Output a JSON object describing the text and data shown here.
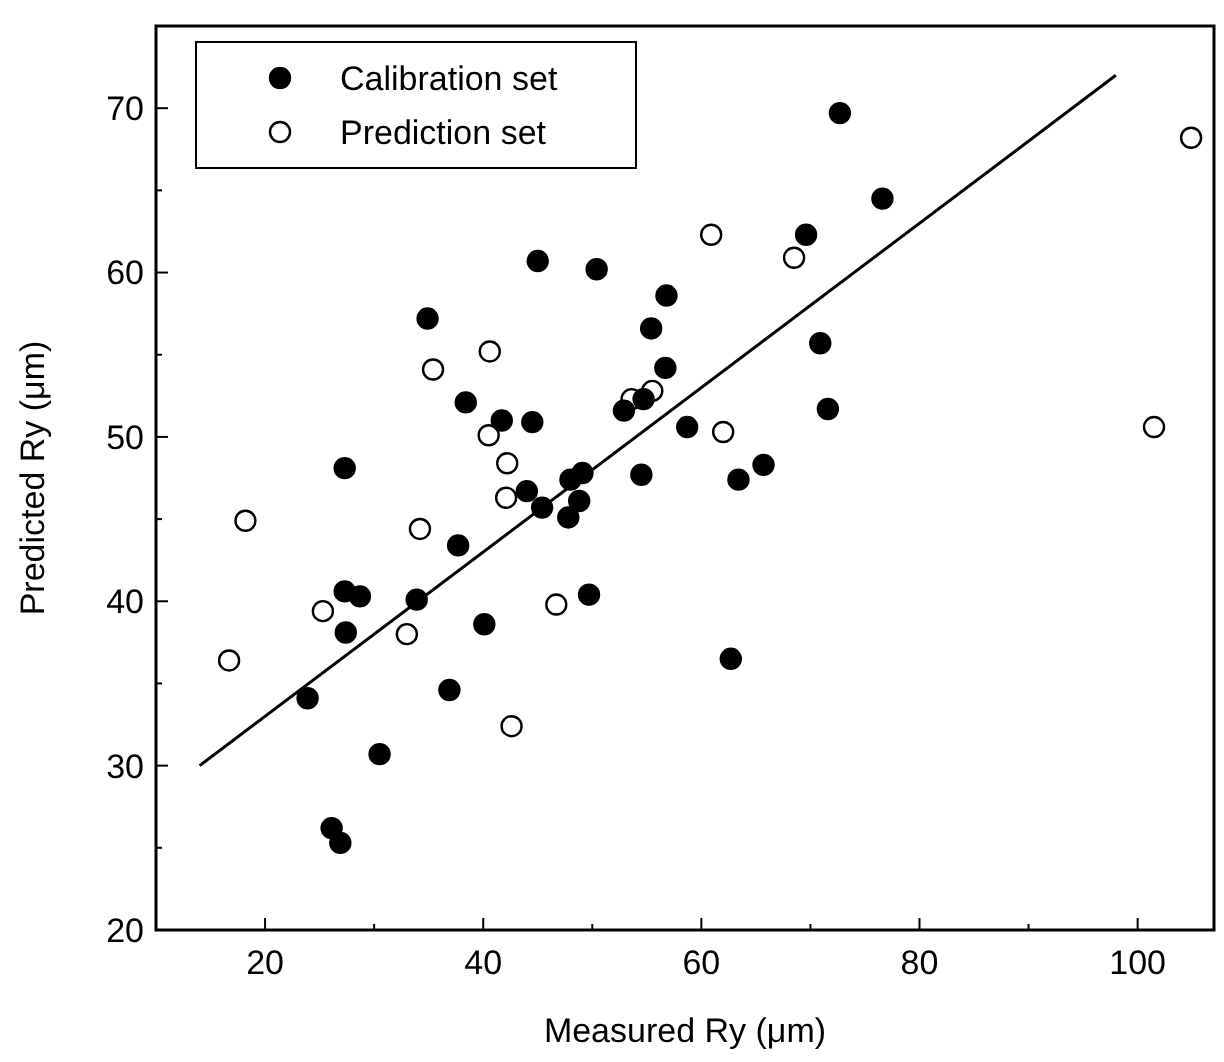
{
  "chart_data": {
    "type": "scatter",
    "xlabel": "Measured Ry (μm)",
    "ylabel": "Predicted Ry (μm)",
    "xlim": [
      10,
      107
    ],
    "ylim": [
      20,
      75
    ],
    "xticks": [
      20,
      {
        "value": 30,
        "label": null
      },
      40,
      {
        "value": 50,
        "label": null
      },
      60,
      {
        "value": 70,
        "label": null
      },
      80,
      {
        "value": 90,
        "label": null
      },
      100
    ],
    "yticks": [
      20,
      {
        "value": 25,
        "label": null
      },
      30,
      {
        "value": 35,
        "label": null
      },
      40,
      {
        "value": 45,
        "label": null
      },
      50,
      {
        "value": 55,
        "label": null
      },
      60,
      {
        "value": 65,
        "label": null
      },
      70
    ],
    "grid": false,
    "legend": "top left",
    "marker": "circle",
    "series": [
      {
        "name": "Calibration set",
        "color": "#000000",
        "x": [
          45.0,
          50.4,
          34.9,
          55.4,
          38.4,
          41.7,
          44.5,
          52.9,
          27.3,
          54.5,
          44.0,
          48.0,
          49.1,
          48.8,
          45.4,
          47.8,
          37.7,
          27.3,
          28.7,
          33.9,
          49.7,
          27.4,
          40.1,
          36.9,
          23.9,
          72.7,
          76.6,
          69.6,
          56.8,
          70.9,
          56.7,
          54.7,
          71.6,
          58.7,
          65.7,
          63.4,
          62.7,
          30.5,
          26.1,
          26.9
        ],
        "values": [
          60.7,
          60.2,
          57.2,
          56.6,
          52.1,
          51.0,
          50.9,
          51.6,
          48.1,
          47.7,
          46.7,
          47.4,
          47.8,
          46.1,
          45.7,
          45.1,
          43.4,
          40.6,
          40.3,
          40.1,
          40.4,
          38.1,
          38.6,
          34.6,
          34.1,
          69.7,
          64.5,
          62.3,
          58.6,
          55.7,
          54.2,
          52.3,
          51.7,
          50.6,
          48.3,
          47.4,
          36.5,
          30.7,
          26.2,
          25.3
        ]
      },
      {
        "name": "Prediction set",
        "color": "#ffffff",
        "x": [
          40.6,
          35.4,
          40.5,
          42.2,
          42.1,
          34.2,
          18.2,
          25.3,
          46.7,
          33.0,
          16.7,
          53.6,
          55.5,
          42.6,
          60.9,
          68.5,
          104.9,
          62.0,
          101.5
        ],
        "values": [
          55.2,
          54.1,
          50.1,
          48.4,
          46.3,
          44.4,
          44.9,
          39.4,
          39.8,
          38.0,
          36.4,
          52.3,
          52.8,
          32.4,
          62.3,
          60.9,
          68.2,
          50.3,
          50.6
        ]
      },
      {
        "type": "line",
        "color": "#000000",
        "marker": "none",
        "line_style": "solid",
        "x": [
          14,
          98
        ],
        "values": [
          30,
          72
        ]
      }
    ]
  }
}
